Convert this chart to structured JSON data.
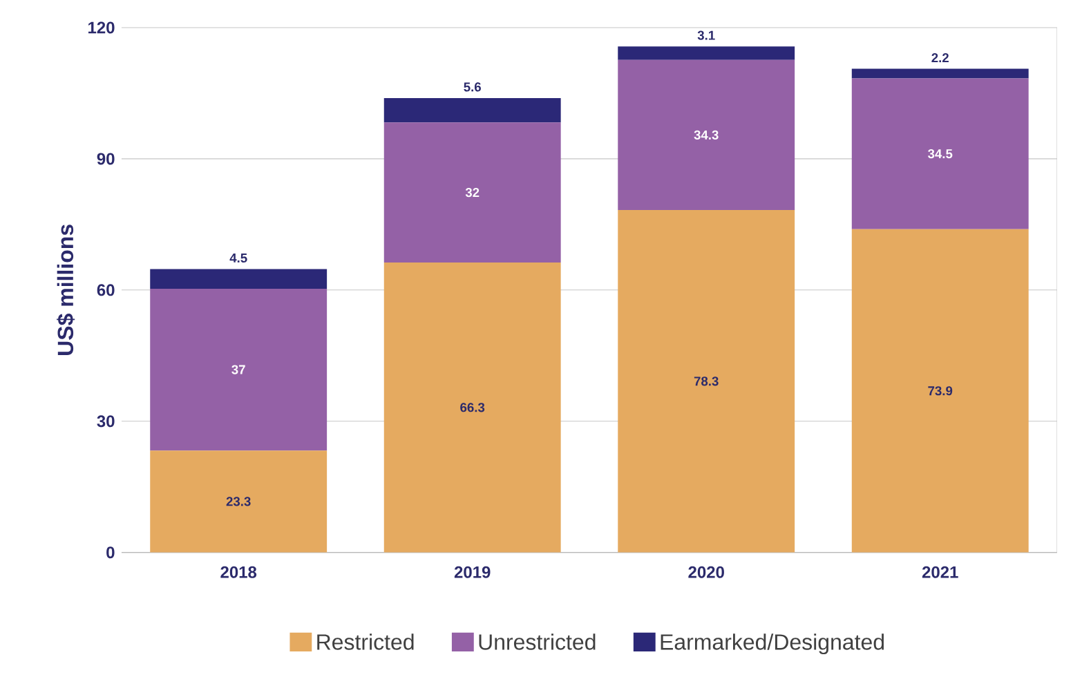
{
  "chart_data": {
    "type": "bar",
    "stacked": true,
    "ylabel": "US$ millions",
    "categories": [
      "2018",
      "2019",
      "2020",
      "2021"
    ],
    "series": [
      {
        "name": "Restricted",
        "color": "#e5aa60",
        "values": [
          23.3,
          66.3,
          78.3,
          73.9
        ]
      },
      {
        "name": "Unrestricted",
        "color": "#9461a6",
        "values": [
          37,
          32,
          34.3,
          34.5
        ]
      },
      {
        "name": "Earmarked/Designated",
        "color": "#2b2877",
        "values": [
          4.5,
          5.6,
          3.1,
          2.2
        ]
      }
    ],
    "ylim": [
      0,
      120
    ],
    "yticks": [
      0,
      30,
      60,
      90,
      120
    ],
    "grid": "y",
    "legend": "bottom",
    "data_labels": true
  }
}
